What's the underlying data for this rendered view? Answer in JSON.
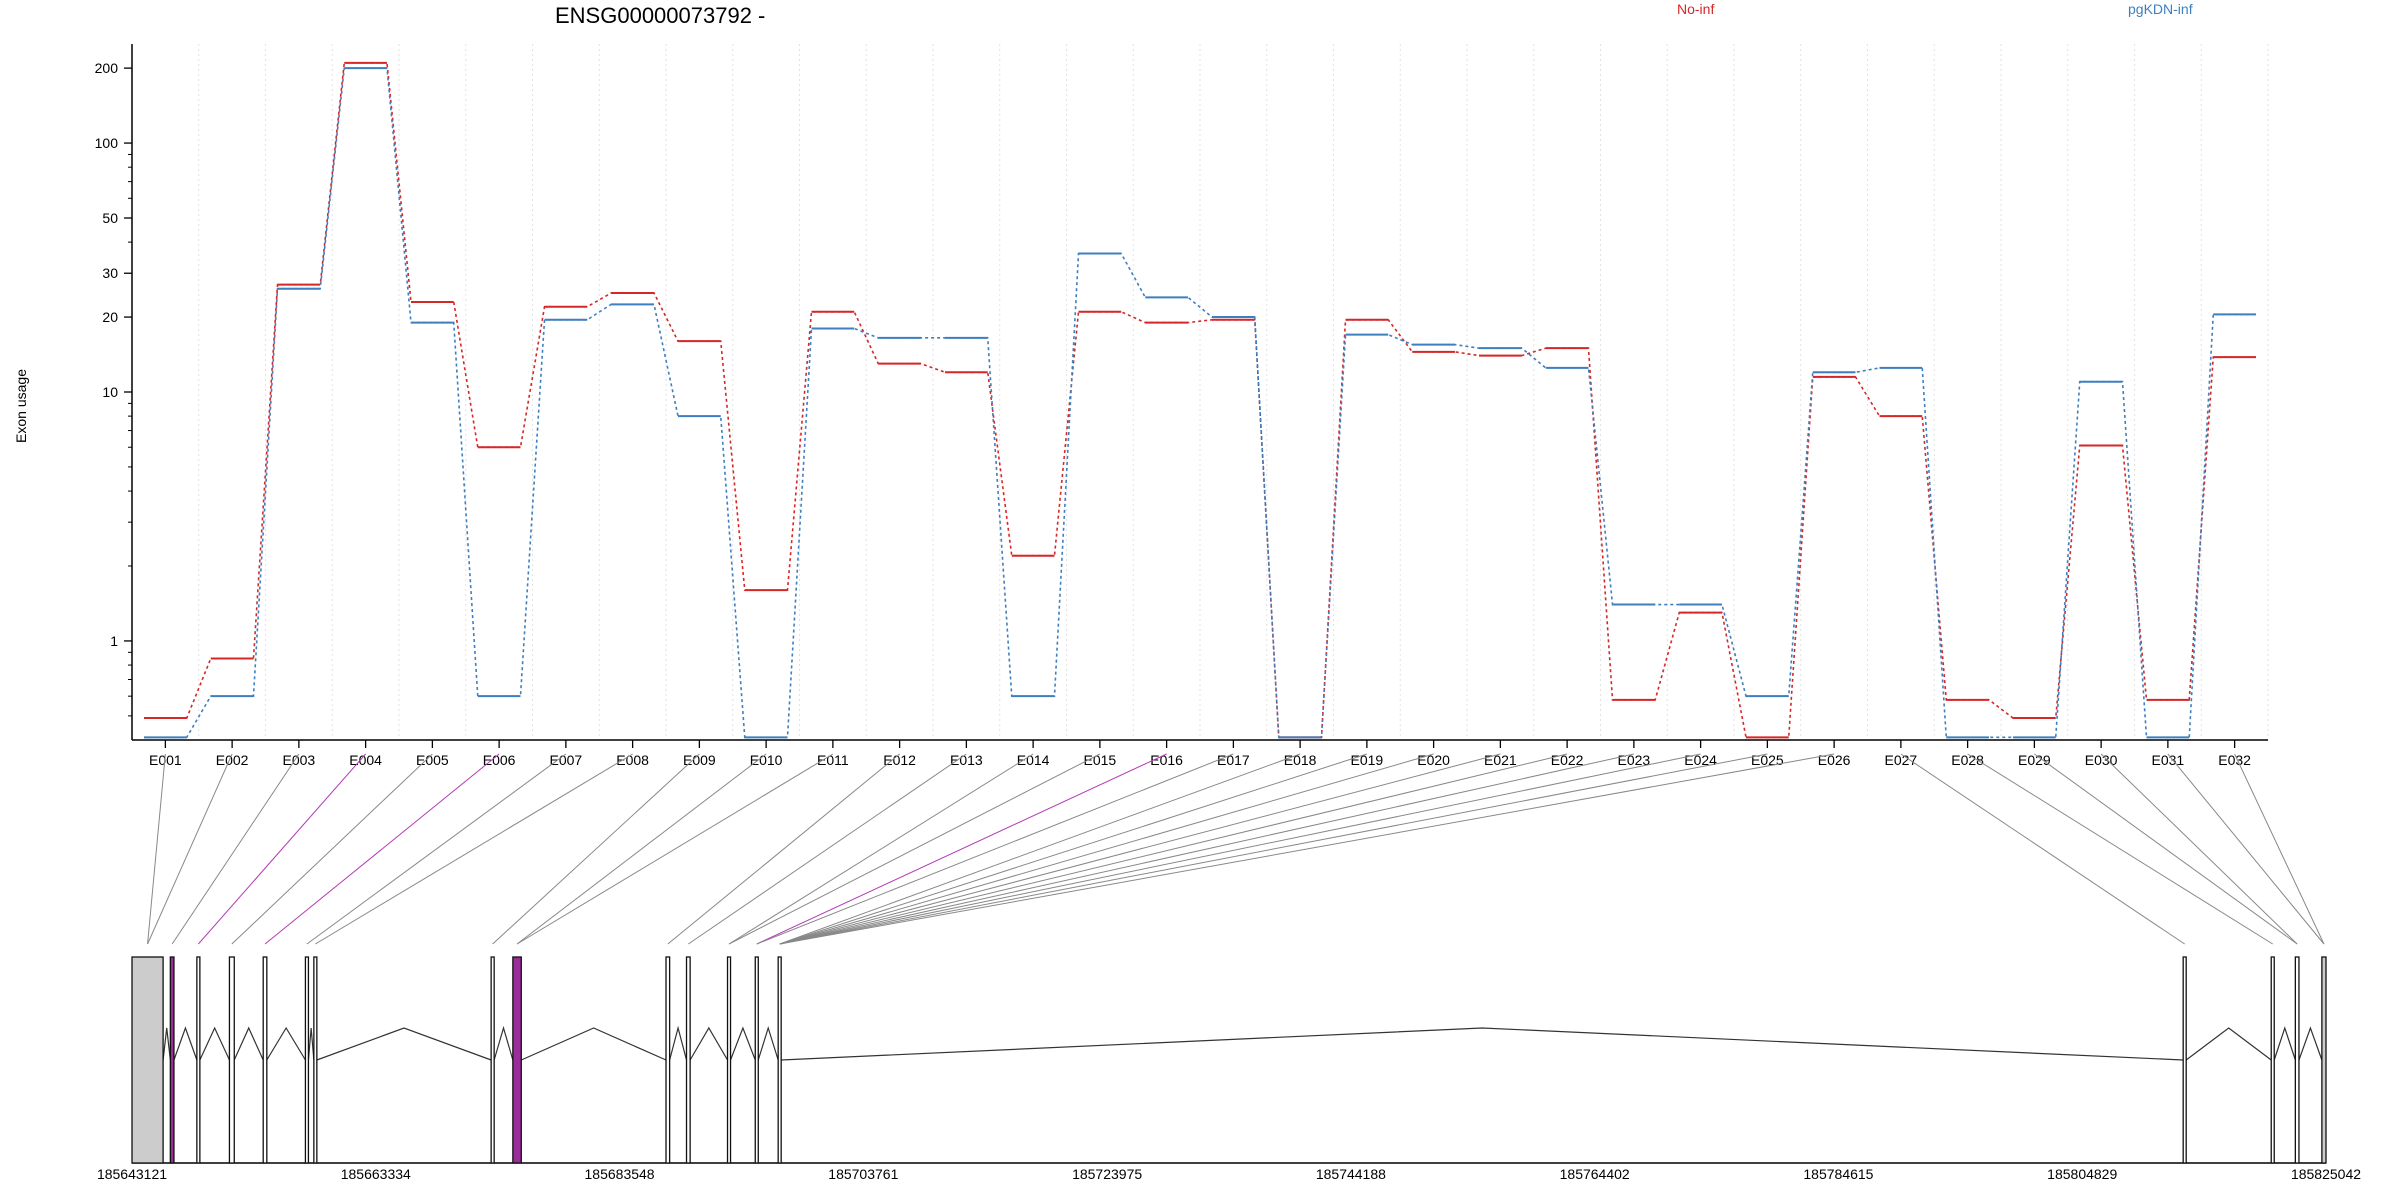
{
  "chart_data": {
    "type": "line",
    "title": "ENSG00000073792 -",
    "ylabel": "Exon usage",
    "yscale": "log",
    "ylim": [
      0.4,
      250
    ],
    "ytick_labels": [
      "1",
      "10",
      "20",
      "30",
      "50",
      "100",
      "200"
    ],
    "legend_position": "top-right",
    "categories": [
      "E001",
      "E002",
      "E003",
      "E004",
      "E005",
      "E006",
      "E007",
      "E008",
      "E009",
      "E010",
      "E011",
      "E012",
      "E013",
      "E014",
      "E015",
      "E016",
      "E017",
      "E018",
      "E019",
      "E020",
      "E021",
      "E022",
      "E023",
      "E024",
      "E025",
      "E026",
      "E027",
      "E028",
      "E029",
      "E030",
      "E031",
      "E032"
    ],
    "series": [
      {
        "name": "No-inf",
        "color": "#d62728",
        "values": [
          0.49,
          0.85,
          27,
          210,
          23,
          6,
          22,
          25,
          16,
          1.6,
          21,
          13,
          12,
          2.2,
          21,
          19,
          19.5,
          0.41,
          19.5,
          14.5,
          14,
          15,
          0.58,
          1.3,
          0.41,
          11.5,
          8,
          0.58,
          0.49,
          6.1,
          0.58,
          13.8
        ]
      },
      {
        "name": "pgKDN-inf",
        "color": "#3e7fbf",
        "values": [
          0.41,
          0.6,
          26,
          200,
          19,
          0.6,
          19.5,
          22.5,
          8,
          0.41,
          18,
          16.5,
          16.5,
          0.6,
          36,
          24,
          20,
          0.41,
          17,
          15.5,
          15,
          12.5,
          1.4,
          1.4,
          0.6,
          12,
          12.5,
          0.41,
          0.41,
          11,
          0.41,
          20.5
        ]
      }
    ],
    "genomic_axis": {
      "tick_labels": [
        "185643121",
        "185663334",
        "185683548",
        "185703761",
        "185723975",
        "185744188",
        "185764402",
        "185784615",
        "185804829",
        "185825042"
      ],
      "range": [
        185643121,
        185825042
      ],
      "exons": [
        {
          "start": 185643121,
          "end": 185645700,
          "fill": "#cccccc"
        },
        {
          "start": 185646300,
          "end": 185646600,
          "fill": "#9b2d9b"
        },
        {
          "start": 185648500,
          "end": 185648700,
          "fill": "#ffffff"
        },
        {
          "start": 185651200,
          "end": 185651600,
          "fill": "#ffffff"
        },
        {
          "start": 185654000,
          "end": 185654300,
          "fill": "#ffffff"
        },
        {
          "start": 185657500,
          "end": 185657750,
          "fill": "#ffffff"
        },
        {
          "start": 185658200,
          "end": 185658400,
          "fill": "#ffffff"
        },
        {
          "start": 185672900,
          "end": 185673150,
          "fill": "#ffffff"
        },
        {
          "start": 185674700,
          "end": 185675400,
          "fill": "#9b2d9b"
        },
        {
          "start": 185687400,
          "end": 185687700,
          "fill": "#ffffff"
        },
        {
          "start": 185689100,
          "end": 185689400,
          "fill": "#ffffff"
        },
        {
          "start": 185692500,
          "end": 185692750,
          "fill": "#ffffff"
        },
        {
          "start": 185694800,
          "end": 185695000,
          "fill": "#ffffff"
        },
        {
          "start": 185696700,
          "end": 185696900,
          "fill": "#ffffff"
        },
        {
          "start": 185813200,
          "end": 185813400,
          "fill": "#ffffff"
        },
        {
          "start": 185820500,
          "end": 185820700,
          "fill": "#ffffff"
        },
        {
          "start": 185822500,
          "end": 185822800,
          "fill": "#ffffff"
        },
        {
          "start": 185824700,
          "end": 185825042,
          "fill": "#cccccc"
        }
      ]
    }
  }
}
